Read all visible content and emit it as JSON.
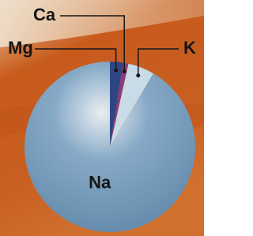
{
  "chart_data": {
    "type": "pie",
    "categories": [
      "Mg",
      "Ca",
      "K",
      "Na"
    ],
    "values": [
      2.5,
      1,
      5,
      91.5
    ],
    "colors": [
      "#2e4784",
      "#8d3b7c",
      "#c8dbe6",
      "#86a9c6"
    ]
  }
}
